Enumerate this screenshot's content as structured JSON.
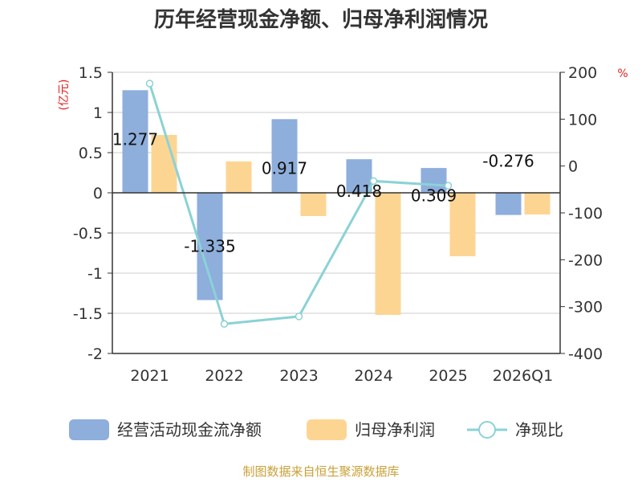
{
  "chart_data": {
    "type": "bar",
    "title": "历年经营现金净额、归母净利润情况",
    "categories": [
      "2021",
      "2022",
      "2023",
      "2024",
      "2025",
      "2026Q1"
    ],
    "y_left": {
      "unit": "(亿元)",
      "min": -2,
      "max": 1.5,
      "ticks": [
        "1.5",
        "1",
        "0.5",
        "0",
        "-0.5",
        "-1",
        "-1.5",
        "-2"
      ]
    },
    "y_right": {
      "unit": "%",
      "min": -400,
      "max": 200,
      "ticks": [
        "200",
        "100",
        "0",
        "-100",
        "-200",
        "-300",
        "-400"
      ]
    },
    "grid": true,
    "legend_position": "bottom",
    "series": [
      {
        "name": "经营活动现金流净额",
        "type": "bar",
        "axis": "left",
        "color": "#8eaedc",
        "values": [
          1.277,
          -1.335,
          0.917,
          0.418,
          0.309,
          -0.276
        ],
        "labels": [
          "1.277",
          "-1.335",
          "0.917",
          "0.418",
          "0.309",
          "-0.276"
        ]
      },
      {
        "name": "归母净利润",
        "type": "bar",
        "axis": "left",
        "color": "#fdd593",
        "values": [
          0.72,
          0.39,
          -0.29,
          -1.52,
          -0.79,
          -0.27
        ]
      },
      {
        "name": "净现比",
        "type": "line",
        "axis": "right",
        "color": "#8bd2d6",
        "values": [
          176,
          -337,
          -321,
          -32,
          -42,
          null
        ]
      }
    ]
  },
  "source": "制图数据来自恒生聚源数据库",
  "source_color": "#c9a13a",
  "unit_color": "#e02020"
}
